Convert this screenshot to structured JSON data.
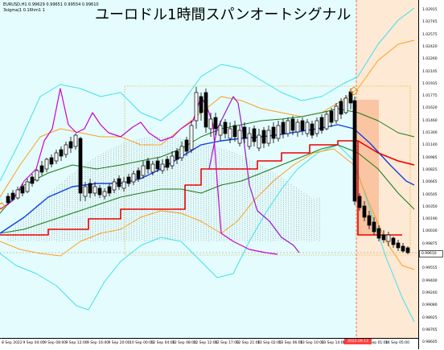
{
  "title": "ユーロドル1時間スパンオートシグナル",
  "info": {
    "symbol_line": "EURUSD,H1  0.99629 0.99651 0.99554 0.99610",
    "indicator_line": "3sigma|1 0.16hm1 1"
  },
  "price_tag": "0.99610",
  "highlight_label": "2022.09.13 22:00",
  "y_axis_labels": [
    "1.02915",
    "1.02745",
    "1.02575",
    "1.02420",
    "1.02260",
    "1.02105",
    "1.01935",
    "1.01775",
    "1.01620",
    "1.01460",
    "1.01300",
    "1.01140",
    "1.00985",
    "1.00825",
    "1.00665",
    "1.00505",
    "1.00350",
    "1.00190",
    "1.00030",
    "0.99875",
    "0.99715",
    "0.99555",
    "0.99400",
    "0.99240",
    "0.99080",
    "0.98925",
    "0.98765",
    "0.98605"
  ],
  "x_axis_labels": [
    "8 Sep 2022",
    "9 Sep 04:00",
    "9 Sep 08:00",
    "9 Sep 12:00",
    "9 Sep 16:00",
    "9 Sep 20:00",
    "10 Sep 00:00",
    "12 Sep 04:00",
    "12 Sep 08:00",
    "12 Sep 12:00",
    "12 Sep 17:00",
    "12 Sep 21:00",
    "13 Sep 02:00",
    "13 Sep 06:00",
    "13 Sep 10:00",
    "13 Sep 14:00",
    "13 Sep 18:00",
    "14 Sep 01:00",
    "14 Sep 05:00"
  ],
  "colors": {
    "background": "#e4fcfd",
    "bb_outer": "#40e0f0",
    "bb_mid": "#ff9e1a",
    "bb_inner": "#1a7a1a",
    "ma_blue": "#1040e0",
    "red_line": "#ee0000",
    "magenta_line": "#cc00cc",
    "purple_line": "#9a1acc",
    "candle": "#000000",
    "signal_zone": "#fde9d4",
    "signal_box": "#f9c5a3"
  }
}
